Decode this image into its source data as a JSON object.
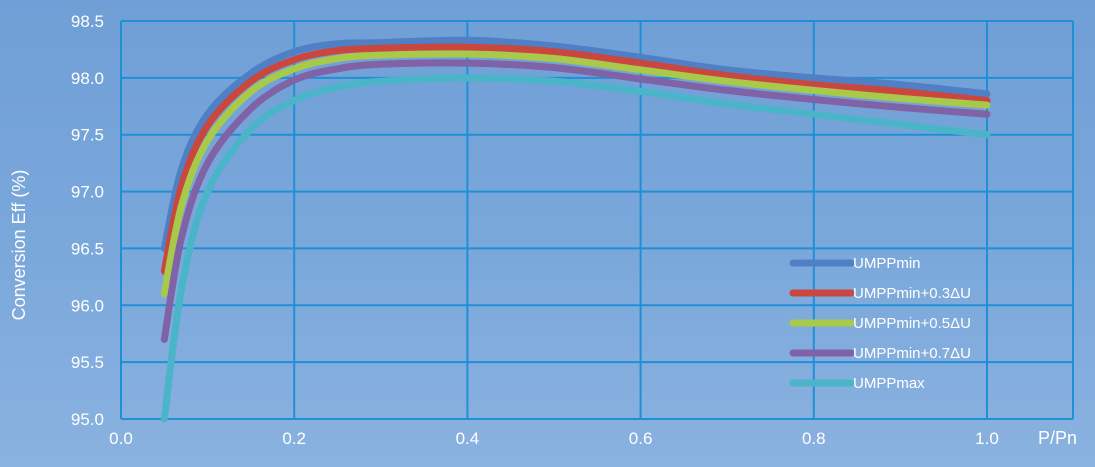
{
  "chart_data": {
    "type": "line",
    "title": "",
    "xlabel": "P/Pn",
    "ylabel": "Conversion Eff (%)",
    "xlim": [
      0.0,
      1.0
    ],
    "ylim": [
      95.0,
      98.5
    ],
    "x_ticks": [
      "0.0",
      "0.2",
      "0.4",
      "0.6",
      "0.8",
      "1.0"
    ],
    "y_ticks": [
      "95.0",
      "95.5",
      "96.0",
      "96.5",
      "97.0",
      "97.5",
      "98.0",
      "98.5"
    ],
    "grid": true,
    "legend_position": "bottom-right",
    "x": [
      0.05,
      0.07,
      0.1,
      0.15,
      0.2,
      0.25,
      0.3,
      0.4,
      0.5,
      0.6,
      0.7,
      0.8,
      0.9,
      1.0
    ],
    "series": [
      {
        "name": "UMPPmin",
        "color": "#4f7fc4",
        "values": [
          96.5,
          97.2,
          97.68,
          98.04,
          98.23,
          98.3,
          98.31,
          98.33,
          98.28,
          98.18,
          98.07,
          98.0,
          97.94,
          97.86
        ]
      },
      {
        "name": "UMPPmin+0.3ΔU",
        "color": "#c9473f",
        "values": [
          96.3,
          97.05,
          97.58,
          97.97,
          98.16,
          98.24,
          98.26,
          98.27,
          98.23,
          98.13,
          98.02,
          97.94,
          97.88,
          97.8
        ]
      },
      {
        "name": "UMPPmin+0.5ΔU",
        "color": "#a9c94a",
        "values": [
          96.1,
          96.88,
          97.45,
          97.88,
          98.08,
          98.17,
          98.2,
          98.21,
          98.17,
          98.07,
          97.97,
          97.89,
          97.82,
          97.76
        ]
      },
      {
        "name": "UMPPmin+0.7ΔU",
        "color": "#8062a6",
        "values": [
          95.7,
          96.6,
          97.25,
          97.73,
          97.98,
          98.08,
          98.12,
          98.13,
          98.09,
          97.99,
          97.89,
          97.81,
          97.74,
          97.68
        ]
      },
      {
        "name": "UMPPmax",
        "color": "#4ab4c8",
        "values": [
          95.0,
          96.15,
          97.0,
          97.55,
          97.8,
          97.92,
          97.97,
          98.0,
          97.97,
          97.88,
          97.77,
          97.68,
          97.59,
          97.5
        ]
      }
    ]
  }
}
